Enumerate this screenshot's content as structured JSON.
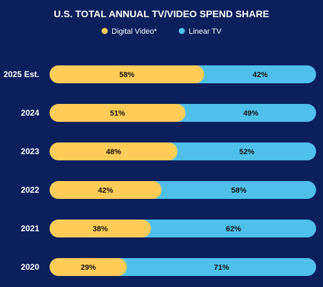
{
  "chart_data": {
    "type": "bar",
    "orientation": "horizontal",
    "stacked": true,
    "title": "U.S. TOTAL ANNUAL TV/VIDEO SPEND SHARE",
    "categories": [
      "2025 Est.",
      "2024",
      "2023",
      "2022",
      "2021",
      "2020"
    ],
    "series": [
      {
        "name": "Digital Video*",
        "values": [
          58,
          51,
          48,
          42,
          38,
          29
        ],
        "labels": [
          "58%",
          "51%",
          "48%",
          "42%",
          "38%",
          "29%"
        ],
        "color": "#ffcd57"
      },
      {
        "name": "Linear TV",
        "values": [
          42,
          49,
          52,
          58,
          62,
          71
        ],
        "labels": [
          "42%",
          "49%",
          "52%",
          "58%",
          "62%",
          "71%"
        ],
        "color": "#4ec0ea"
      }
    ],
    "xlim": [
      0,
      100
    ],
    "legend_position": "top-center",
    "grid": false
  },
  "colors": {
    "background": "#0a1f5c",
    "text": "#ffffff",
    "value_text": "#111111"
  }
}
